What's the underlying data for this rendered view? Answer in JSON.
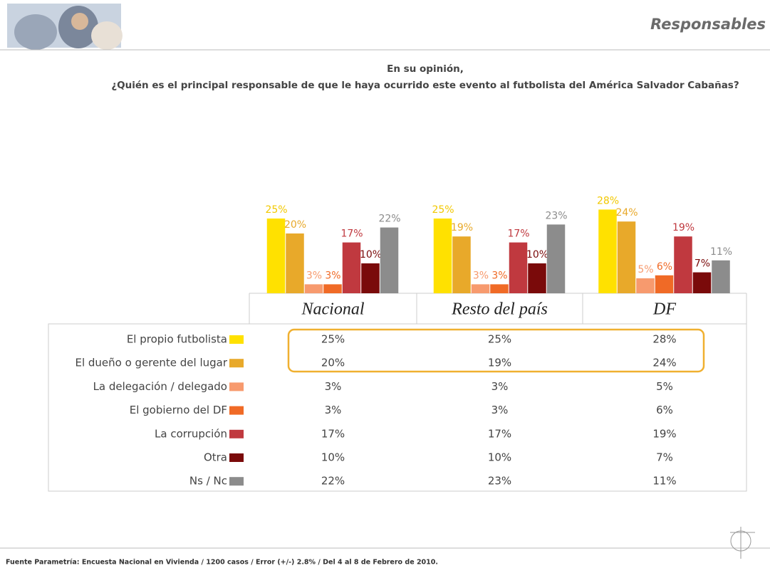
{
  "header": {
    "title": "Responsables"
  },
  "chart_data": {
    "type": "bar",
    "title": "En su opinión,",
    "subtitle": "¿Quién es el principal responsable de que le haya ocurrido este evento al futbolista del América Salvador Cabañas?",
    "categories": [
      "Nacional",
      "Resto del país",
      "DF"
    ],
    "series": [
      {
        "name": "El propio futbolista",
        "color": "#ffe100",
        "values": [
          25,
          25,
          28
        ],
        "value_labels": [
          "25%",
          "25%",
          "28%"
        ]
      },
      {
        "name": "El dueño o gerente del lugar",
        "color": "#e8a92a",
        "values": [
          20,
          19,
          24
        ],
        "value_labels": [
          "20%",
          "19%",
          "24%"
        ]
      },
      {
        "name": "La delegación / delegado",
        "color": "#f79a6e",
        "values": [
          3,
          3,
          5
        ],
        "value_labels": [
          "3%",
          "3%",
          "5%"
        ]
      },
      {
        "name": "El gobierno del DF",
        "color": "#f06a26",
        "values": [
          3,
          3,
          6
        ],
        "value_labels": [
          "3%",
          "3%",
          "6%"
        ]
      },
      {
        "name": "La corrupción",
        "color": "#c0393f",
        "values": [
          17,
          17,
          19
        ],
        "value_labels": [
          "17%",
          "17%",
          "19%"
        ]
      },
      {
        "name": "Otra",
        "color": "#7a0a0a",
        "values": [
          10,
          10,
          7
        ],
        "value_labels": [
          "10%",
          "10%",
          "7%"
        ]
      },
      {
        "name": "Ns / Nc",
        "color": "#8c8c8c",
        "values": [
          22,
          23,
          11
        ],
        "value_labels": [
          "22%",
          "23%",
          "11%"
        ]
      }
    ]
  },
  "footer": {
    "source": "Fuente Parametría: Encuesta Nacional en Vivienda / 1200 casos / Error (+/-) 2.8% / Del 4 al 8 de Febrero de 2010."
  }
}
